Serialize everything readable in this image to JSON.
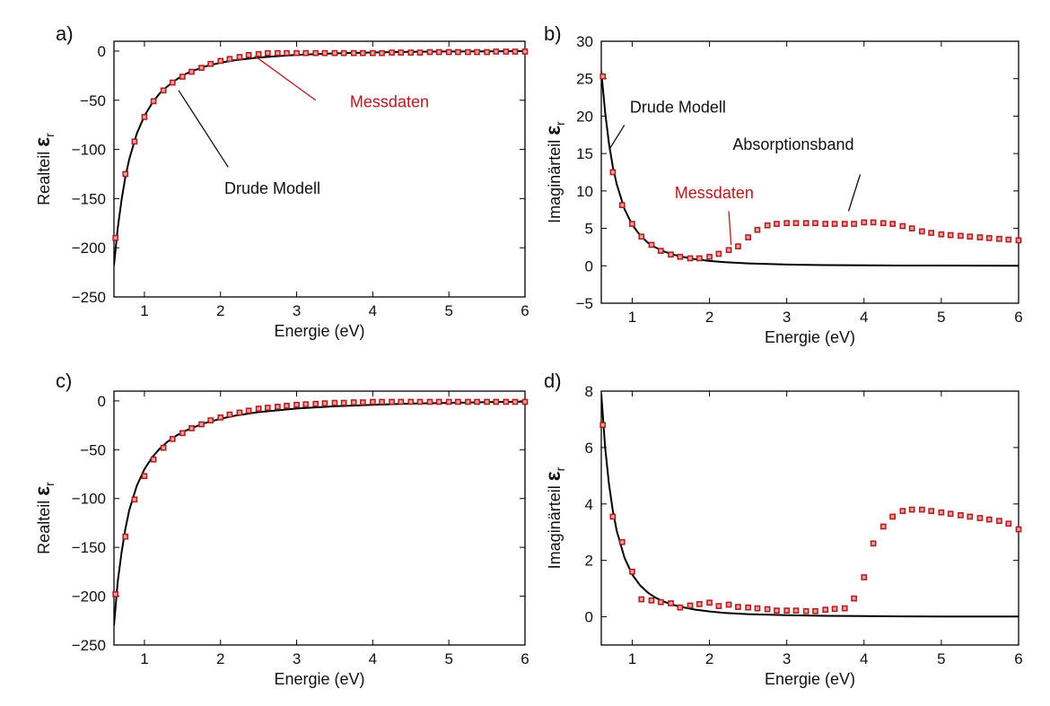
{
  "colors": {
    "model": "#000000",
    "data": "#b01c1c",
    "axis": "#000000"
  },
  "chart_data": [
    {
      "id": "a",
      "panel_label": "a)",
      "type": "scatter",
      "xlabel": "Energie (eV)",
      "ylabel": "Realteil",
      "ylabel_symbol": "ε",
      "ylabel_sub": "r",
      "xlim": [
        0.6,
        6
      ],
      "ylim": [
        -250,
        10
      ],
      "xticks": [
        1,
        2,
        3,
        4,
        5,
        6
      ],
      "yticks": [
        -250,
        -200,
        -150,
        -100,
        -50,
        0
      ],
      "xtick_labels": [
        "1",
        "2",
        "3",
        "4",
        "5",
        "6"
      ],
      "ytick_labels": [
        "−250",
        "−200",
        "−150",
        "−100",
        "−50",
        "0"
      ],
      "series": [
        {
          "name": "Drude Modell",
          "kind": "line",
          "x": [
            0.6,
            0.65,
            0.7,
            0.75,
            0.8,
            0.9,
            1.0,
            1.1,
            1.2,
            1.3,
            1.4,
            1.5,
            1.6,
            1.8,
            2.0,
            2.2,
            2.5,
            3.0,
            3.5,
            4.0,
            4.5,
            5.0,
            5.5,
            6.0
          ],
          "y": [
            -218,
            -180,
            -151,
            -128,
            -110,
            -84,
            -66,
            -53,
            -43,
            -36,
            -30,
            -25,
            -21,
            -15.5,
            -11.8,
            -9.2,
            -6.5,
            -3.8,
            -2.3,
            -1.4,
            -0.8,
            -0.4,
            -0.2,
            0
          ]
        },
        {
          "name": "Messdaten",
          "kind": "markers",
          "x": [
            0.62,
            0.75,
            0.87,
            1.0,
            1.12,
            1.25,
            1.37,
            1.5,
            1.62,
            1.75,
            1.87,
            2.0,
            2.12,
            2.25,
            2.37,
            2.5,
            2.62,
            2.75,
            2.87,
            3.0,
            3.12,
            3.25,
            3.37,
            3.5,
            3.62,
            3.75,
            3.87,
            4.0,
            4.12,
            4.25,
            4.37,
            4.5,
            4.62,
            4.75,
            4.87,
            5.0,
            5.12,
            5.25,
            5.37,
            5.5,
            5.62,
            5.75,
            5.87,
            6.0
          ],
          "y": [
            -190,
            -125,
            -92,
            -67,
            -51,
            -40,
            -32,
            -26,
            -21,
            -17,
            -13,
            -10,
            -8,
            -6,
            -4,
            -3,
            -2,
            -2,
            -2,
            -2,
            -2,
            -2,
            -2,
            -2,
            -2,
            -2,
            -2,
            -2,
            -2,
            -1.5,
            -1.5,
            -1.5,
            -1.5,
            -1,
            -1,
            -1,
            -1,
            -1,
            -1,
            -1,
            -0.5,
            -0.5,
            -0.5,
            -0.5
          ]
        }
      ],
      "annotations": [
        {
          "text": "Messdaten",
          "series": "Messdaten",
          "x": 3.7,
          "y": -57,
          "ax": 2.45,
          "ay": -5,
          "bx": 3.25,
          "by": -50
        },
        {
          "text": "Drude Modell",
          "series": "Drude Modell",
          "x": 2.05,
          "y": -145,
          "ax": 1.45,
          "ay": -40,
          "bx": 2.1,
          "by": -118
        }
      ]
    },
    {
      "id": "b",
      "panel_label": "b)",
      "type": "scatter",
      "xlabel": "Energie (eV)",
      "ylabel": "Imaginärteil",
      "ylabel_symbol": "ε",
      "ylabel_sub": "r",
      "xlim": [
        0.6,
        6
      ],
      "ylim": [
        -5,
        30
      ],
      "xticks": [
        1,
        2,
        3,
        4,
        5,
        6
      ],
      "yticks": [
        -5,
        0,
        5,
        10,
        15,
        20,
        25,
        30
      ],
      "xtick_labels": [
        "1",
        "2",
        "3",
        "4",
        "5",
        "6"
      ],
      "ytick_labels": [
        "−5",
        "0",
        "5",
        "10",
        "15",
        "20",
        "25",
        "30"
      ],
      "series": [
        {
          "name": "Drude Modell",
          "kind": "line",
          "x": [
            0.6,
            0.65,
            0.7,
            0.75,
            0.8,
            0.9,
            1.0,
            1.1,
            1.2,
            1.3,
            1.4,
            1.5,
            1.6,
            1.8,
            2.0,
            2.2,
            2.5,
            3.0,
            3.5,
            4.0,
            4.5,
            5.0,
            5.5,
            6.0
          ],
          "y": [
            26,
            20.5,
            16.3,
            13.2,
            10.9,
            7.6,
            5.5,
            4.1,
            3.1,
            2.45,
            1.95,
            1.6,
            1.3,
            0.9,
            0.65,
            0.48,
            0.32,
            0.17,
            0.1,
            0.06,
            0.04,
            0.03,
            0.02,
            0.01
          ]
        },
        {
          "name": "Messdaten",
          "kind": "markers",
          "x": [
            0.62,
            0.75,
            0.87,
            1.0,
            1.12,
            1.25,
            1.37,
            1.5,
            1.62,
            1.75,
            1.87,
            2.0,
            2.12,
            2.25,
            2.37,
            2.5,
            2.62,
            2.75,
            2.87,
            3.0,
            3.12,
            3.25,
            3.37,
            3.5,
            3.62,
            3.75,
            3.87,
            4.0,
            4.12,
            4.25,
            4.37,
            4.5,
            4.62,
            4.75,
            4.87,
            5.0,
            5.12,
            5.25,
            5.37,
            5.5,
            5.62,
            5.75,
            5.87,
            6.0
          ],
          "y": [
            25.3,
            12.5,
            8.1,
            5.6,
            3.9,
            2.8,
            2.0,
            1.5,
            1.2,
            1.0,
            1.0,
            1.2,
            1.6,
            2.1,
            2.6,
            3.8,
            4.8,
            5.4,
            5.6,
            5.7,
            5.7,
            5.7,
            5.7,
            5.6,
            5.6,
            5.6,
            5.6,
            5.8,
            5.8,
            5.7,
            5.6,
            5.3,
            5.0,
            4.6,
            4.4,
            4.2,
            4.1,
            4.0,
            3.9,
            3.8,
            3.7,
            3.6,
            3.5,
            3.4
          ]
        }
      ],
      "annotations": [
        {
          "text": "Drude Modell",
          "series": "Drude Modell",
          "x": 0.97,
          "y": 20.5,
          "ax": 0.7,
          "ay": 15.5,
          "bx": 0.9,
          "by": 18.8
        },
        {
          "text": "Messdaten",
          "series": "Messdaten",
          "x": 1.55,
          "y": 9.0,
          "ax": 2.28,
          "ay": 2.8,
          "bx": 2.25,
          "by": 7.3
        },
        {
          "text": "Absorptionsband",
          "series": "",
          "x": 2.3,
          "y": 15.5,
          "ax": 3.8,
          "ay": 7.3,
          "bx": 3.95,
          "by": 12.2
        }
      ]
    },
    {
      "id": "c",
      "panel_label": "c)",
      "type": "scatter",
      "xlabel": "Energie (eV)",
      "ylabel": "Realteil",
      "ylabel_symbol": "ε",
      "ylabel_sub": "r",
      "xlim": [
        0.6,
        6
      ],
      "ylim": [
        -250,
        10
      ],
      "xticks": [
        1,
        2,
        3,
        4,
        5,
        6
      ],
      "yticks": [
        -250,
        -200,
        -150,
        -100,
        -50,
        0
      ],
      "xtick_labels": [
        "1",
        "2",
        "3",
        "4",
        "5",
        "6"
      ],
      "ytick_labels": [
        "−250",
        "−200",
        "−150",
        "−100",
        "−50",
        "0"
      ],
      "series": [
        {
          "name": "Drude Modell",
          "kind": "line",
          "x": [
            0.6,
            0.65,
            0.7,
            0.75,
            0.8,
            0.9,
            1.0,
            1.1,
            1.2,
            1.3,
            1.4,
            1.5,
            1.6,
            1.8,
            2.0,
            2.2,
            2.5,
            3.0,
            3.5,
            4.0,
            4.5,
            5.0,
            5.5,
            6.0
          ],
          "y": [
            -230,
            -185,
            -155,
            -131,
            -112,
            -87,
            -70,
            -58,
            -49,
            -42,
            -36.5,
            -32,
            -28.5,
            -22.5,
            -18.3,
            -15,
            -11.5,
            -7.8,
            -5.5,
            -4,
            -2.8,
            -2,
            -1.3,
            -0.8
          ]
        },
        {
          "name": "Messdaten",
          "kind": "markers",
          "x": [
            0.62,
            0.75,
            0.87,
            1.0,
            1.12,
            1.25,
            1.37,
            1.5,
            1.62,
            1.75,
            1.87,
            2.0,
            2.12,
            2.25,
            2.37,
            2.5,
            2.62,
            2.75,
            2.87,
            3.0,
            3.12,
            3.25,
            3.37,
            3.5,
            3.62,
            3.75,
            3.87,
            4.0,
            4.12,
            4.25,
            4.37,
            4.5,
            4.62,
            4.75,
            4.87,
            5.0,
            5.12,
            5.25,
            5.37,
            5.5,
            5.62,
            5.75,
            5.87,
            6.0
          ],
          "y": [
            -198,
            -139,
            -101,
            -77,
            -60,
            -48,
            -39,
            -33,
            -28,
            -24,
            -20,
            -17,
            -14,
            -12,
            -10,
            -8,
            -7,
            -6,
            -5,
            -4,
            -3.5,
            -3,
            -2.5,
            -2,
            -2,
            -1.5,
            -1.5,
            -1,
            -1,
            -1,
            -1,
            -1,
            -1,
            -1,
            -1,
            -1,
            -1,
            -1,
            -1,
            -1,
            -1,
            -1,
            -1,
            -1
          ]
        }
      ],
      "annotations": []
    },
    {
      "id": "d",
      "panel_label": "d)",
      "type": "scatter",
      "xlabel": "Energie (eV)",
      "ylabel": "Imaginärteil",
      "ylabel_symbol": "ε",
      "ylabel_sub": "r",
      "xlim": [
        0.6,
        6
      ],
      "ylim": [
        -1,
        8
      ],
      "xticks": [
        1,
        2,
        3,
        4,
        5,
        6
      ],
      "yticks": [
        0,
        2,
        4,
        6,
        8
      ],
      "xtick_labels": [
        "1",
        "2",
        "3",
        "4",
        "5",
        "6"
      ],
      "ytick_labels": [
        "0",
        "2",
        "4",
        "6",
        "8"
      ],
      "series": [
        {
          "name": "Drude Modell",
          "kind": "line",
          "x": [
            0.6,
            0.65,
            0.7,
            0.75,
            0.8,
            0.9,
            1.0,
            1.1,
            1.2,
            1.3,
            1.4,
            1.5,
            1.6,
            1.8,
            2.0,
            2.2,
            2.5,
            3.0,
            3.5,
            4.0,
            4.5,
            5.0,
            5.5,
            6.0
          ],
          "y": [
            7.9,
            6.0,
            4.7,
            3.75,
            3.05,
            2.1,
            1.5,
            1.12,
            0.86,
            0.68,
            0.55,
            0.45,
            0.37,
            0.26,
            0.19,
            0.14,
            0.095,
            0.055,
            0.035,
            0.023,
            0.016,
            0.012,
            0.009,
            0.007
          ]
        },
        {
          "name": "Messdaten",
          "kind": "markers",
          "x": [
            0.62,
            0.75,
            0.87,
            1.0,
            1.12,
            1.25,
            1.37,
            1.5,
            1.62,
            1.75,
            1.87,
            2.0,
            2.12,
            2.25,
            2.37,
            2.5,
            2.62,
            2.75,
            2.87,
            3.0,
            3.12,
            3.25,
            3.37,
            3.5,
            3.62,
            3.75,
            3.87,
            4.0,
            4.12,
            4.25,
            4.37,
            4.5,
            4.62,
            4.75,
            4.87,
            5.0,
            5.12,
            5.25,
            5.37,
            5.5,
            5.62,
            5.75,
            5.87,
            6.0
          ],
          "y": [
            6.8,
            3.55,
            2.65,
            1.6,
            0.62,
            0.58,
            0.52,
            0.48,
            0.33,
            0.4,
            0.45,
            0.5,
            0.38,
            0.43,
            0.35,
            0.33,
            0.3,
            0.27,
            0.22,
            0.22,
            0.22,
            0.2,
            0.2,
            0.25,
            0.28,
            0.3,
            0.65,
            1.4,
            2.6,
            3.2,
            3.55,
            3.75,
            3.8,
            3.8,
            3.75,
            3.7,
            3.65,
            3.6,
            3.55,
            3.5,
            3.45,
            3.4,
            3.3,
            3.1
          ]
        }
      ],
      "annotations": []
    }
  ]
}
